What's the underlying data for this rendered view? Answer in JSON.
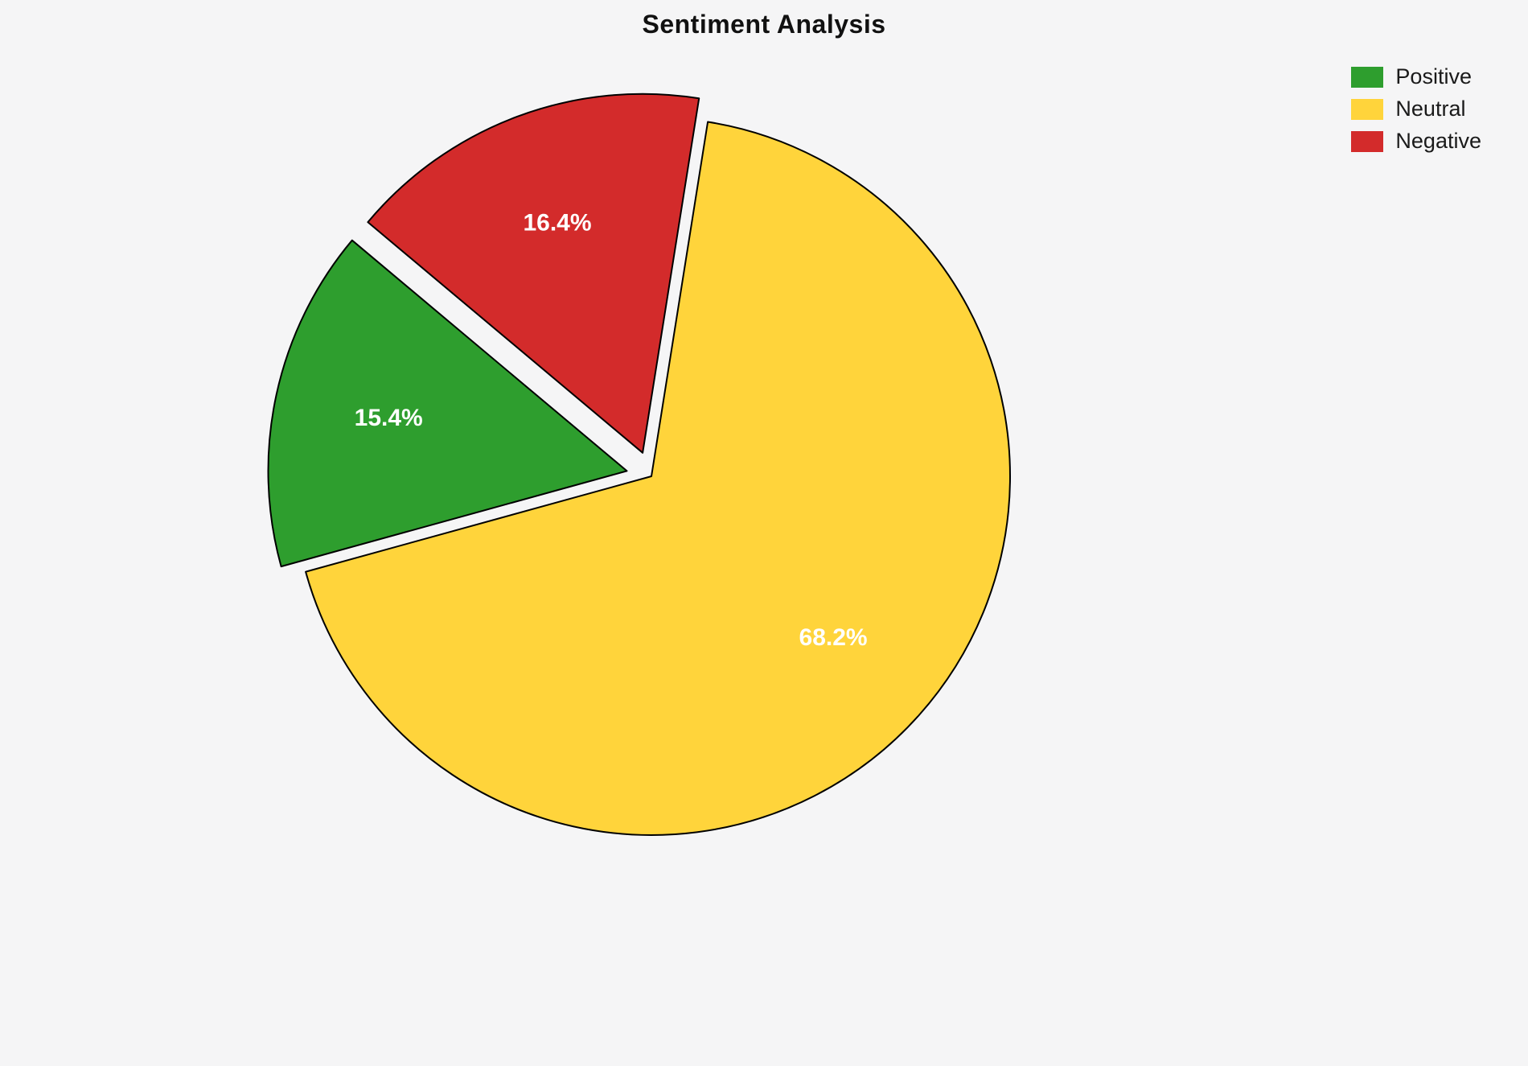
{
  "chart_data": {
    "type": "pie",
    "title": "Sentiment Analysis",
    "series": [
      {
        "name": "Positive",
        "value": 15.4,
        "label": "15.4%",
        "color": "#2e9e2e",
        "explode": 0.07
      },
      {
        "name": "Neutral",
        "value": 68.2,
        "label": "68.2%",
        "color": "#ffd43b",
        "explode": 0
      },
      {
        "name": "Negative",
        "value": 16.4,
        "label": "16.4%",
        "color": "#d32b2b",
        "explode": 0.07
      }
    ],
    "start_angle": 140,
    "direction": "counterclockwise",
    "legend_position": "upper right",
    "legend_entries": [
      "Positive",
      "Neutral",
      "Negative"
    ],
    "background_color": "#f5f5f6",
    "edge_color": "#000000",
    "percent_label_color": "#ffffff"
  }
}
